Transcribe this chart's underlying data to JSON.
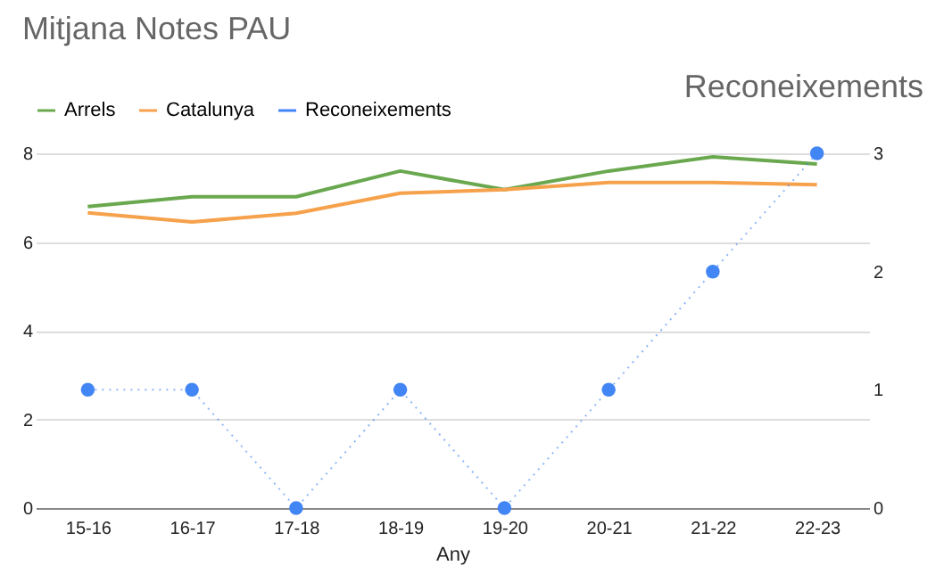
{
  "chart_data": {
    "type": "line",
    "title": "Mitjana Notes PAU",
    "xlabel": "Any",
    "y2label": "Reconeixements",
    "categories": [
      "15-16",
      "16-17",
      "17-18",
      "18-19",
      "19-20",
      "20-21",
      "21-22",
      "22-23"
    ],
    "series": [
      {
        "name": "Arrels",
        "color": "#6aa84f",
        "values": [
          6.8,
          7.02,
          7.02,
          7.6,
          7.18,
          7.6,
          7.92,
          7.76
        ]
      },
      {
        "name": "Catalunya",
        "color": "#f6a14b",
        "values": [
          6.66,
          6.45,
          6.65,
          7.1,
          7.18,
          7.34,
          7.34,
          7.29
        ]
      },
      {
        "name": "Reconeixements",
        "color": "#4285f4",
        "axis": "y2",
        "marker": "circle",
        "line_style": "dotted",
        "values": [
          1,
          1,
          0,
          1,
          0,
          1,
          2,
          3
        ]
      }
    ],
    "ylim": [
      0,
      8
    ],
    "yticks": [
      0,
      2,
      4,
      6,
      8
    ],
    "y2lim": [
      0,
      3
    ],
    "y2ticks": [
      0,
      1,
      2,
      3
    ],
    "grid": "y",
    "legend": "top"
  }
}
